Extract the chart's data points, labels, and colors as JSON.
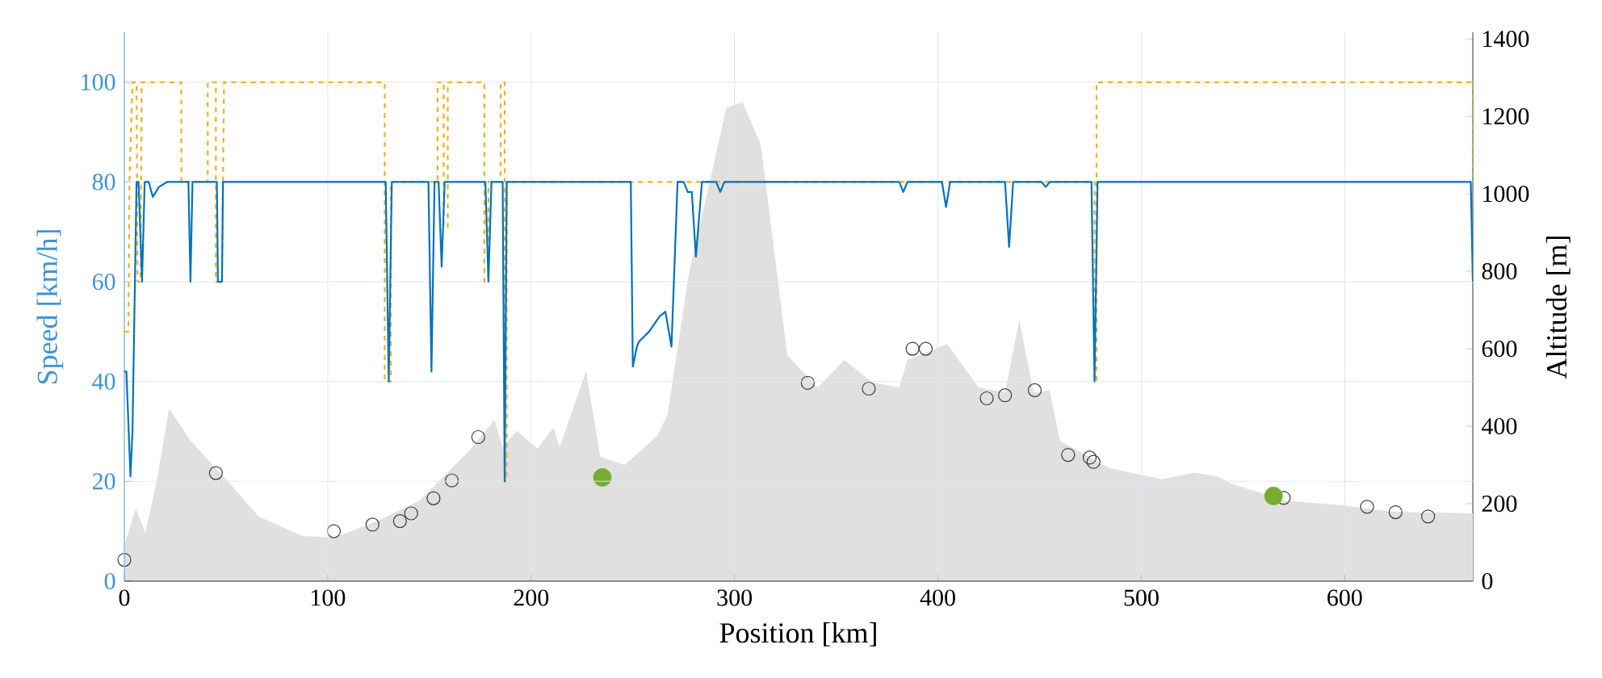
{
  "chart_data": {
    "type": "line",
    "xlabel": "Position [km]",
    "ylabel": "Speed [km/h]",
    "y2label": "Altitude [m]",
    "xlim": [
      0,
      663
    ],
    "ylim": [
      0,
      110
    ],
    "y2lim": [
      0,
      1417
    ],
    "xticks": [
      0,
      100,
      200,
      300,
      400,
      500,
      600
    ],
    "yticks": [
      0,
      20,
      40,
      60,
      80,
      100
    ],
    "y2ticks": [
      0,
      200,
      400,
      600,
      800,
      1000,
      1200,
      1400
    ],
    "grid": true,
    "series": [
      {
        "type": "area",
        "axis": "y2",
        "color": "#e0e0e0",
        "x": [
          0,
          5.6,
          10.3,
          15.6,
          22,
          32.6,
          50,
          66,
          87,
          103,
          124,
          145,
          169,
          182,
          186,
          193,
          203,
          211,
          214,
          227,
          234,
          246,
          262,
          267,
          277.5,
          296,
          304,
          313,
          326,
          341,
          354,
          367.5,
          381,
          385,
          404.5,
          420,
          433,
          440,
          447,
          455,
          460,
          484,
          510,
          526,
          537,
          545,
          571,
          598,
          624,
          663
        ],
        "values": [
          92,
          187,
          125,
          250,
          445,
          362,
          263,
          167,
          117,
          112,
          154,
          208,
          333,
          417,
          346,
          388,
          342,
          396,
          346,
          542,
          321,
          300,
          375,
          429,
          792,
          1222,
          1236,
          1125,
          583,
          500,
          571,
          513,
          500,
          571,
          612,
          500,
          487,
          675,
          487,
          492,
          362,
          292,
          263,
          280,
          271,
          250,
          208,
          196,
          179,
          175
        ]
      },
      {
        "line_style": "dashed",
        "color": "#edb120",
        "x": [
          0,
          2,
          2.5,
          4,
          6,
          6.5,
          8,
          8.5,
          28,
          28,
          41,
          41,
          45,
          45,
          48,
          49,
          128,
          128,
          131,
          131,
          154,
          154,
          157,
          157,
          159,
          159,
          177,
          177,
          179,
          179,
          185,
          185,
          187,
          187,
          188,
          188,
          477,
          477,
          478,
          478,
          663,
          663
        ],
        "values": [
          50,
          50,
          80,
          100,
          100,
          60,
          60,
          100,
          100,
          80,
          80,
          100,
          100,
          60,
          60,
          100,
          100,
          40,
          40,
          80,
          80,
          100,
          100,
          71,
          71,
          100,
          100,
          60,
          60,
          80,
          80,
          100,
          100,
          20,
          20,
          80,
          80,
          40,
          40,
          100,
          100,
          80
        ]
      },
      {
        "line_style": "solid",
        "color": "#0072bd",
        "x": [
          0,
          1,
          3,
          4,
          6,
          7,
          8.7,
          10,
          12,
          14,
          17,
          21,
          31.5,
          32.5,
          33.5,
          45.5,
          46,
          48,
          48.5,
          128.5,
          130,
          131.5,
          149.5,
          151,
          152.5,
          154.5,
          156,
          157.5,
          177.5,
          179,
          180.5,
          186,
          187,
          188,
          249,
          250,
          252,
          253,
          258,
          263,
          266,
          269,
          272,
          275,
          277,
          279,
          281,
          284,
          291,
          293,
          295,
          381,
          383,
          385,
          402,
          404,
          406,
          433,
          435,
          437,
          451,
          453,
          455,
          475.5,
          477,
          478.5,
          662,
          663
        ],
        "values": [
          42,
          42,
          21,
          30,
          80,
          80,
          60,
          80,
          80,
          77,
          79,
          80,
          80,
          60,
          80,
          80,
          60,
          60,
          80,
          80,
          40,
          80,
          80,
          42,
          80,
          80,
          63,
          80,
          80,
          60,
          80,
          80,
          20,
          80,
          80,
          43,
          47,
          48,
          50,
          53,
          54,
          47,
          80,
          80,
          78,
          78,
          65,
          80,
          80,
          78,
          80,
          80,
          78,
          80,
          80,
          75,
          80,
          80,
          67,
          80,
          80,
          79,
          80,
          80,
          40,
          80,
          80,
          60
        ]
      },
      {
        "type": "scatter",
        "axis": "y2",
        "marker": "circle",
        "color": "#3c3c3c",
        "x": [
          0,
          45,
          103,
          122,
          135.5,
          141,
          152,
          161,
          174,
          336,
          366,
          387.5,
          394,
          424,
          433,
          447.6,
          464,
          474.6,
          476.5,
          570,
          611,
          625,
          641
        ],
        "values": [
          55,
          279,
          129,
          146,
          155,
          175,
          214,
          260,
          372,
          512,
          497,
          600,
          600,
          472,
          480,
          493,
          326,
          319,
          308,
          215,
          192,
          178,
          167
        ]
      },
      {
        "type": "scatter",
        "axis": "y2",
        "marker": "circle",
        "color": "#77ac30",
        "x": [
          235,
          565
        ],
        "values": [
          268,
          220
        ]
      }
    ]
  }
}
